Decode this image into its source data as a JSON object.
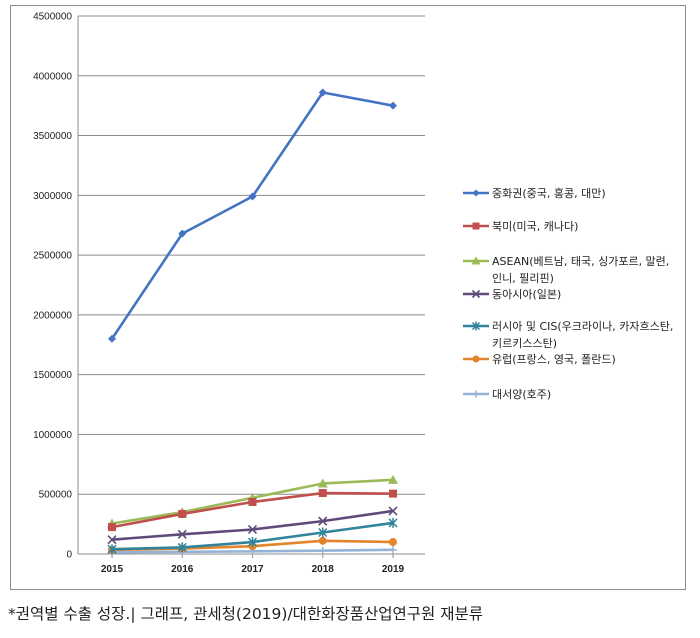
{
  "chart_data": {
    "type": "line",
    "categories": [
      "2015",
      "2016",
      "2017",
      "2018",
      "2019"
    ],
    "ylim": [
      0,
      4500000
    ],
    "y_ticks": [
      "0",
      "500000",
      "1000000",
      "1500000",
      "2000000",
      "2500000",
      "3000000",
      "3500000",
      "4000000",
      "4500000"
    ],
    "grid": true,
    "legend_position": "right",
    "series": [
      {
        "name": "중화권(중국, 홍콩, 대만)",
        "color": "#4472c4",
        "marker": "diamond",
        "values": [
          1800000,
          2680000,
          2990000,
          3860000,
          3750000
        ]
      },
      {
        "name": "북미(미국, 캐나다)",
        "color": "#c0504d",
        "marker": "square",
        "values": [
          225000,
          335000,
          435000,
          510000,
          505000
        ]
      },
      {
        "name": "ASEAN(베트남, 태국, 싱가포르, 말련, 인니, 필리핀)",
        "color": "#9bbb59",
        "marker": "triangle",
        "values": [
          255000,
          350000,
          470000,
          590000,
          620000
        ]
      },
      {
        "name": "동아시아(일본)",
        "color": "#604a7b",
        "marker": "x",
        "values": [
          120000,
          165000,
          205000,
          275000,
          360000
        ]
      },
      {
        "name": "러시아 및 CIS(우크라이나, 카자흐스탄, 키르키스스탄)",
        "color": "#31849b",
        "marker": "star",
        "values": [
          40000,
          55000,
          100000,
          180000,
          260000
        ]
      },
      {
        "name": "유럽(프랑스, 영국, 폴란드)",
        "color": "#e3852a",
        "marker": "circle",
        "values": [
          35000,
          45000,
          65000,
          110000,
          100000
        ]
      },
      {
        "name": "대서양(호주)",
        "color": "#95b3d7",
        "marker": "plus",
        "values": [
          15000,
          18000,
          22000,
          28000,
          35000
        ]
      }
    ],
    "legend_lines": [
      [
        "중화권(중국, 홍콩, 대만)"
      ],
      [
        "북미(미국, 캐나다)"
      ],
      [
        "ASEAN(베트남, 태국, 싱가포르, 말련,",
        "인니, 필리핀)"
      ],
      [
        "동아시아(일본)"
      ],
      [
        "러시아 및 CIS(우크라이나, 카자흐스탄,",
        "키르키스스탄)"
      ],
      [
        "유럽(프랑스, 영국, 폴란드)"
      ],
      [
        "대서양(호주)"
      ]
    ]
  },
  "caption": "*권역별 수출 성장.| 그래프, 관세청(2019)/대한화장품산업연구원 재분류"
}
